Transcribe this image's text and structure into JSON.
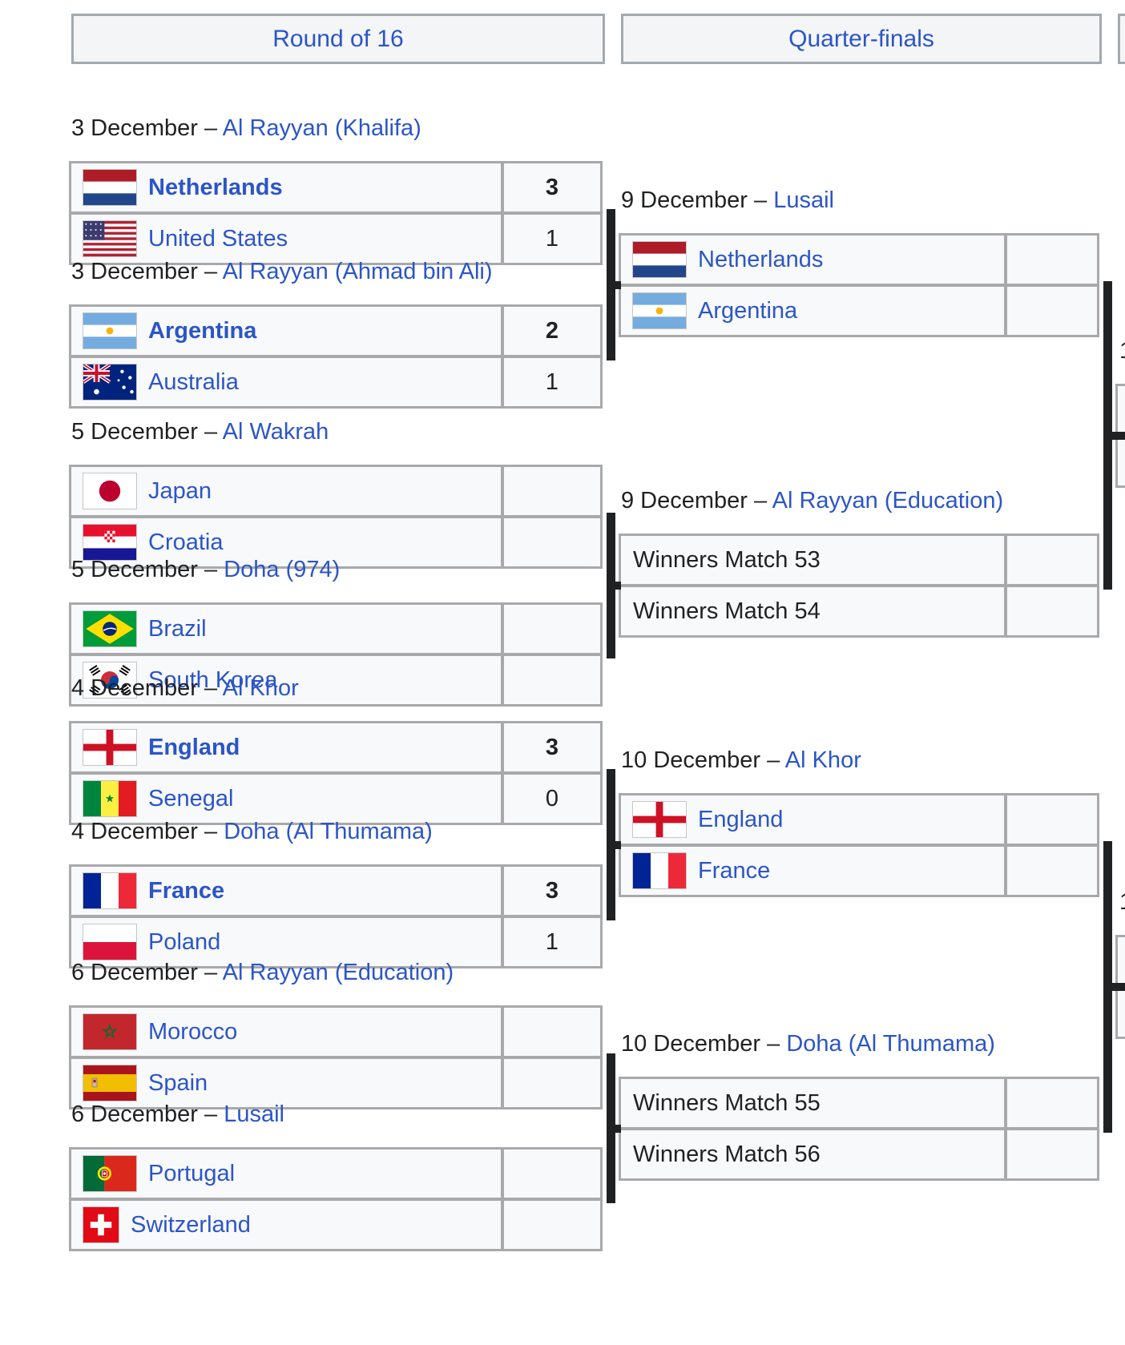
{
  "colors": {
    "link": "#2b55c8",
    "text": "#202122",
    "cell_bg": "#f8f9fa",
    "table_border": "#a9a9ab",
    "connector": "#202122",
    "header_bg": "#f4f5f6"
  },
  "headers": [
    {
      "id": "round-of-16",
      "label": "Round of 16"
    },
    {
      "id": "quarter-finals",
      "label": "Quarter-finals"
    },
    {
      "id": "semi-finals-clipped",
      "label": ""
    }
  ],
  "round_of_16": [
    {
      "date": "3 December",
      "venue": "Al Rayyan (Khalifa)",
      "home": {
        "team": "Netherlands",
        "flag": "netherlands-flag",
        "score": "3",
        "winner": true
      },
      "away": {
        "team": "United States",
        "flag": "united-states-flag",
        "score": "1",
        "winner": false
      }
    },
    {
      "date": "3 December",
      "venue": "Al Rayyan (Ahmad bin Ali)",
      "home": {
        "team": "Argentina",
        "flag": "argentina-flag",
        "score": "2",
        "winner": true
      },
      "away": {
        "team": "Australia",
        "flag": "australia-flag",
        "score": "1",
        "winner": false
      }
    },
    {
      "date": "5 December",
      "venue": "Al Wakrah",
      "home": {
        "team": "Japan",
        "flag": "japan-flag",
        "score": "",
        "winner": false
      },
      "away": {
        "team": "Croatia",
        "flag": "croatia-flag",
        "score": "",
        "winner": false
      }
    },
    {
      "date": "5 December",
      "venue": "Doha (974)",
      "home": {
        "team": "Brazil",
        "flag": "brazil-flag",
        "score": "",
        "winner": false
      },
      "away": {
        "team": "South Korea",
        "flag": "south-korea-flag",
        "score": "",
        "winner": false
      }
    },
    {
      "date": "4 December",
      "venue": "Al Khor",
      "home": {
        "team": "England",
        "flag": "england-flag",
        "score": "3",
        "winner": true
      },
      "away": {
        "team": "Senegal",
        "flag": "senegal-flag",
        "score": "0",
        "winner": false
      }
    },
    {
      "date": "4 December",
      "venue": "Doha (Al Thumama)",
      "home": {
        "team": "France",
        "flag": "france-flag",
        "score": "3",
        "winner": true
      },
      "away": {
        "team": "Poland",
        "flag": "poland-flag",
        "score": "1",
        "winner": false
      }
    },
    {
      "date": "6 December",
      "venue": "Al Rayyan (Education)",
      "home": {
        "team": "Morocco",
        "flag": "morocco-flag",
        "score": "",
        "winner": false
      },
      "away": {
        "team": "Spain",
        "flag": "spain-flag",
        "score": "",
        "winner": false
      }
    },
    {
      "date": "6 December",
      "venue": "Lusail",
      "home": {
        "team": "Portugal",
        "flag": "portugal-flag",
        "score": "",
        "winner": false
      },
      "away": {
        "team": "Switzerland",
        "flag": "switzerland-flag",
        "score": "",
        "winner": false
      }
    }
  ],
  "quarter_finals": [
    {
      "date": "9 December",
      "venue": "Lusail",
      "home": {
        "team": "Netherlands",
        "flag": "netherlands-flag",
        "score": "",
        "winner": false
      },
      "away": {
        "team": "Argentina",
        "flag": "argentina-flag",
        "score": "",
        "winner": false
      }
    },
    {
      "date": "9 December",
      "venue": "Al Rayyan (Education)",
      "home": {
        "team": "Winners Match 53",
        "flag": null,
        "score": "",
        "winner": false
      },
      "away": {
        "team": "Winners Match 54",
        "flag": null,
        "score": "",
        "winner": false
      }
    },
    {
      "date": "10 December",
      "venue": "Al Khor",
      "home": {
        "team": "England",
        "flag": "england-flag",
        "score": "",
        "winner": false
      },
      "away": {
        "team": "France",
        "flag": "france-flag",
        "score": "",
        "winner": false
      }
    },
    {
      "date": "10 December",
      "venue": "Doha (Al Thumama)",
      "home": {
        "team": "Winners Match 55",
        "flag": null,
        "score": "",
        "winner": false
      },
      "away": {
        "team": "Winners Match 56",
        "flag": null,
        "score": "",
        "winner": false
      }
    }
  ],
  "semi_finals_clipped": [
    {
      "date_fragment": "1",
      "home": {
        "team": "",
        "score": ""
      },
      "away": {
        "team": "",
        "score": ""
      }
    },
    {
      "date_fragment": "1",
      "home": {
        "team": "",
        "score": ""
      },
      "away": {
        "team": "",
        "score": ""
      }
    }
  ]
}
